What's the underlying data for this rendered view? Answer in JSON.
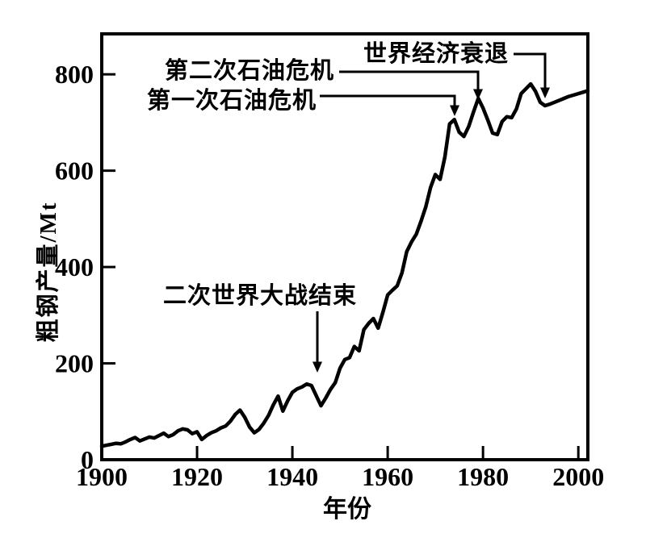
{
  "figure": {
    "background": "#ffffff",
    "ink_color": "#000000"
  },
  "chart_data": {
    "type": "line",
    "title": "",
    "xlabel": "年份",
    "ylabel": "粗钢产量/Mt",
    "xlim": [
      1900,
      2002
    ],
    "ylim": [
      0,
      884
    ],
    "x_ticks": [
      1900,
      1920,
      1940,
      1960,
      1980,
      2000
    ],
    "y_ticks": [
      0,
      200,
      400,
      600,
      800
    ],
    "grid": false,
    "legend_position": "none",
    "line_color": "#000000",
    "series": [
      {
        "x": [
          1900,
          1901,
          1902,
          1903,
          1904,
          1905,
          1906,
          1907,
          1908,
          1909,
          1910,
          1911,
          1912,
          1913,
          1914,
          1915,
          1916,
          1917,
          1918,
          1919,
          1920,
          1921,
          1922,
          1923,
          1924,
          1925,
          1926,
          1927,
          1928,
          1929,
          1930,
          1931,
          1932,
          1933,
          1934,
          1935,
          1936,
          1937,
          1938,
          1939,
          1940,
          1941,
          1942,
          1943,
          1944,
          1945,
          1946,
          1947,
          1948,
          1949,
          1950,
          1951,
          1952,
          1953,
          1954,
          1955,
          1956,
          1957,
          1958,
          1959,
          1960,
          1961,
          1962,
          1963,
          1964,
          1965,
          1966,
          1967,
          1968,
          1969,
          1970,
          1971,
          1972,
          1973,
          1974,
          1975,
          1976,
          1977,
          1978,
          1979,
          1980,
          1981,
          1982,
          1983,
          1984,
          1985,
          1986,
          1987,
          1988,
          1989,
          1990,
          1991,
          1992,
          1993,
          1994,
          1995,
          1996,
          1997,
          1998,
          1999,
          2000,
          2001,
          2002
        ],
        "y": [
          28,
          30,
          32,
          34,
          33,
          37,
          42,
          46,
          39,
          43,
          47,
          45,
          50,
          55,
          48,
          52,
          60,
          64,
          62,
          54,
          58,
          42,
          50,
          56,
          60,
          66,
          70,
          80,
          94,
          103,
          88,
          68,
          56,
          63,
          76,
          92,
          114,
          132,
          101,
          122,
          140,
          147,
          151,
          157,
          154,
          133,
          112,
          128,
          146,
          160,
          190,
          208,
          212,
          235,
          226,
          270,
          283,
          293,
          273,
          306,
          342,
          352,
          361,
          388,
          432,
          452,
          468,
          495,
          525,
          565,
          592,
          582,
          628,
          697,
          706,
          680,
          671,
          692,
          722,
          750,
          730,
          705,
          678,
          675,
          702,
          712,
          710,
          728,
          760,
          770,
          780,
          765,
          742,
          735,
          738,
          742,
          746,
          750,
          754,
          757,
          760,
          763,
          766
        ]
      }
    ],
    "annotations": [
      {
        "label": "世界经济衰退",
        "target_year": 1993,
        "target_value": 735
      },
      {
        "label": "第二次石油危机",
        "target_year": 1979,
        "target_value": 750
      },
      {
        "label": "第一次石油危机",
        "target_year": 1974,
        "target_value": 706
      },
      {
        "label": "二次世界大战结束",
        "target_year": 1946,
        "target_value": 112
      }
    ]
  }
}
